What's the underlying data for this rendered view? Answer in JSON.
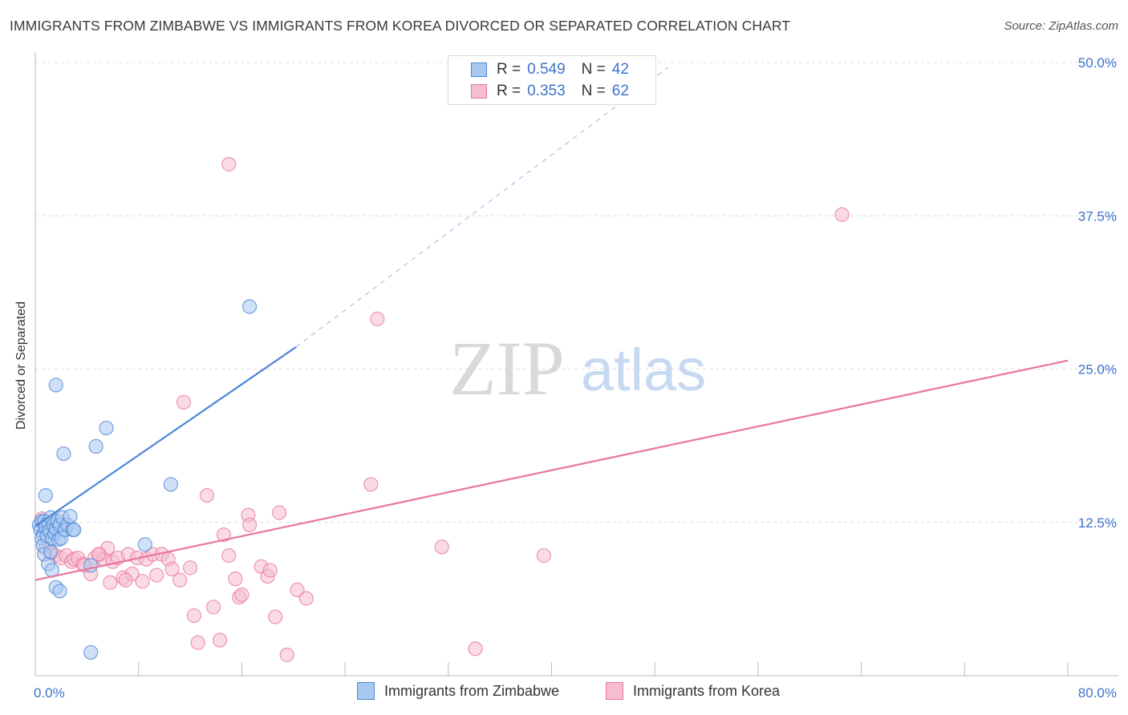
{
  "title": "IMMIGRANTS FROM ZIMBABWE VS IMMIGRANTS FROM KOREA DIVORCED OR SEPARATED CORRELATION CHART",
  "source": "Source: ZipAtlas.com",
  "watermark": {
    "zip": "ZIP",
    "atlas": "atlas"
  },
  "legend": {
    "r_label": "R =",
    "n_label": "N =",
    "series": [
      {
        "r": "0.549",
        "n": "42"
      },
      {
        "r": "0.353",
        "n": "62"
      }
    ]
  },
  "chart_data": {
    "type": "scatter",
    "title": "IMMIGRANTS FROM ZIMBABWE VS IMMIGRANTS FROM KOREA DIVORCED OR SEPARATED CORRELATION CHART",
    "xlabel": "",
    "ylabel": "Divorced or Separated",
    "xlim": [
      0,
      80
    ],
    "ylim": [
      0,
      50
    ],
    "x_tick_labels": [
      "0.0%",
      "80.0%"
    ],
    "y_ticks": [
      12.5,
      25.0,
      37.5,
      50.0
    ],
    "y_tick_labels": [
      "12.5%",
      "25.0%",
      "37.5%",
      "50.0%"
    ],
    "grid": true,
    "colors": {
      "zimbabwe": "#4a86d8",
      "korea": "#e8769f",
      "zimbabwe_fill": "#a9c8f0",
      "korea_fill": "#f6bdd0"
    },
    "series": [
      {
        "name": "Immigrants from Zimbabwe",
        "R": 0.549,
        "N": 42,
        "trend": {
          "x": [
            0.0,
            20.2
          ],
          "y": [
            12.2,
            26.8
          ],
          "dashed_to": [
            49.0,
            49.6
          ]
        },
        "points": [
          [
            0.3,
            12.3
          ],
          [
            0.4,
            11.9
          ],
          [
            0.5,
            12.6
          ],
          [
            0.6,
            11.5
          ],
          [
            0.5,
            11.2
          ],
          [
            0.6,
            10.6
          ],
          [
            0.7,
            12.6
          ],
          [
            0.8,
            12.1
          ],
          [
            0.9,
            11.4
          ],
          [
            1.0,
            12.5
          ],
          [
            1.1,
            11.8
          ],
          [
            1.2,
            12.9
          ],
          [
            1.3,
            11.2
          ],
          [
            1.4,
            12.3
          ],
          [
            1.5,
            11.6
          ],
          [
            1.6,
            12.0
          ],
          [
            1.7,
            12.6
          ],
          [
            1.8,
            11.1
          ],
          [
            1.9,
            12.3
          ],
          [
            2.0,
            11.2
          ],
          [
            2.1,
            12.9
          ],
          [
            2.3,
            11.9
          ],
          [
            2.5,
            12.3
          ],
          [
            0.8,
            14.7
          ],
          [
            0.7,
            9.9
          ],
          [
            1.0,
            9.1
          ],
          [
            1.2,
            10.1
          ],
          [
            1.3,
            8.6
          ],
          [
            1.6,
            7.2
          ],
          [
            1.9,
            6.9
          ],
          [
            2.7,
            13.0
          ],
          [
            2.9,
            11.9
          ],
          [
            3.0,
            11.9
          ],
          [
            1.6,
            23.7
          ],
          [
            2.2,
            18.1
          ],
          [
            4.7,
            18.7
          ],
          [
            5.5,
            20.2
          ],
          [
            8.5,
            10.7
          ],
          [
            10.5,
            15.6
          ],
          [
            16.6,
            30.1
          ],
          [
            4.3,
            1.9
          ],
          [
            4.3,
            9.0
          ]
        ]
      },
      {
        "name": "Immigrants from Korea",
        "R": 0.353,
        "N": 62,
        "trend": {
          "x": [
            0.0,
            80.0
          ],
          "y": [
            7.8,
            25.7
          ]
        },
        "points": [
          [
            0.5,
            12.8
          ],
          [
            0.8,
            10.4
          ],
          [
            1.2,
            10.0
          ],
          [
            1.6,
            9.8
          ],
          [
            2.0,
            9.6
          ],
          [
            2.4,
            9.8
          ],
          [
            2.8,
            9.3
          ],
          [
            3.0,
            9.5
          ],
          [
            3.3,
            9.6
          ],
          [
            3.7,
            9.1
          ],
          [
            4.3,
            8.3
          ],
          [
            4.6,
            9.6
          ],
          [
            5.0,
            9.9
          ],
          [
            5.3,
            9.5
          ],
          [
            5.6,
            10.4
          ],
          [
            6.0,
            9.3
          ],
          [
            6.4,
            9.6
          ],
          [
            6.8,
            8.0
          ],
          [
            7.2,
            9.9
          ],
          [
            7.5,
            8.3
          ],
          [
            7.9,
            9.6
          ],
          [
            8.3,
            7.7
          ],
          [
            8.6,
            9.5
          ],
          [
            9.1,
            9.9
          ],
          [
            9.4,
            8.2
          ],
          [
            9.8,
            9.9
          ],
          [
            10.3,
            9.5
          ],
          [
            10.6,
            8.7
          ],
          [
            11.2,
            7.8
          ],
          [
            11.5,
            22.3
          ],
          [
            12.0,
            8.8
          ],
          [
            12.3,
            4.9
          ],
          [
            12.6,
            2.7
          ],
          [
            13.3,
            14.7
          ],
          [
            13.8,
            5.6
          ],
          [
            14.3,
            2.9
          ],
          [
            14.6,
            11.5
          ],
          [
            15.0,
            9.8
          ],
          [
            15.0,
            41.7
          ],
          [
            15.5,
            7.9
          ],
          [
            15.8,
            6.4
          ],
          [
            16.0,
            6.6
          ],
          [
            16.5,
            13.1
          ],
          [
            16.6,
            12.3
          ],
          [
            17.5,
            8.9
          ],
          [
            18.0,
            8.1
          ],
          [
            18.2,
            8.6
          ],
          [
            18.6,
            4.8
          ],
          [
            18.9,
            13.3
          ],
          [
            19.5,
            1.7
          ],
          [
            20.3,
            7.0
          ],
          [
            21.0,
            6.3
          ],
          [
            26.5,
            29.1
          ],
          [
            26.0,
            15.6
          ],
          [
            31.5,
            10.5
          ],
          [
            34.1,
            2.2
          ],
          [
            39.4,
            9.8
          ],
          [
            62.5,
            37.6
          ],
          [
            3.8,
            9.0
          ],
          [
            5.8,
            7.6
          ],
          [
            7.0,
            7.8
          ],
          [
            4.9,
            9.9
          ]
        ]
      }
    ]
  },
  "bottom_legend": [
    "Immigrants from Zimbabwe",
    "Immigrants from Korea"
  ]
}
